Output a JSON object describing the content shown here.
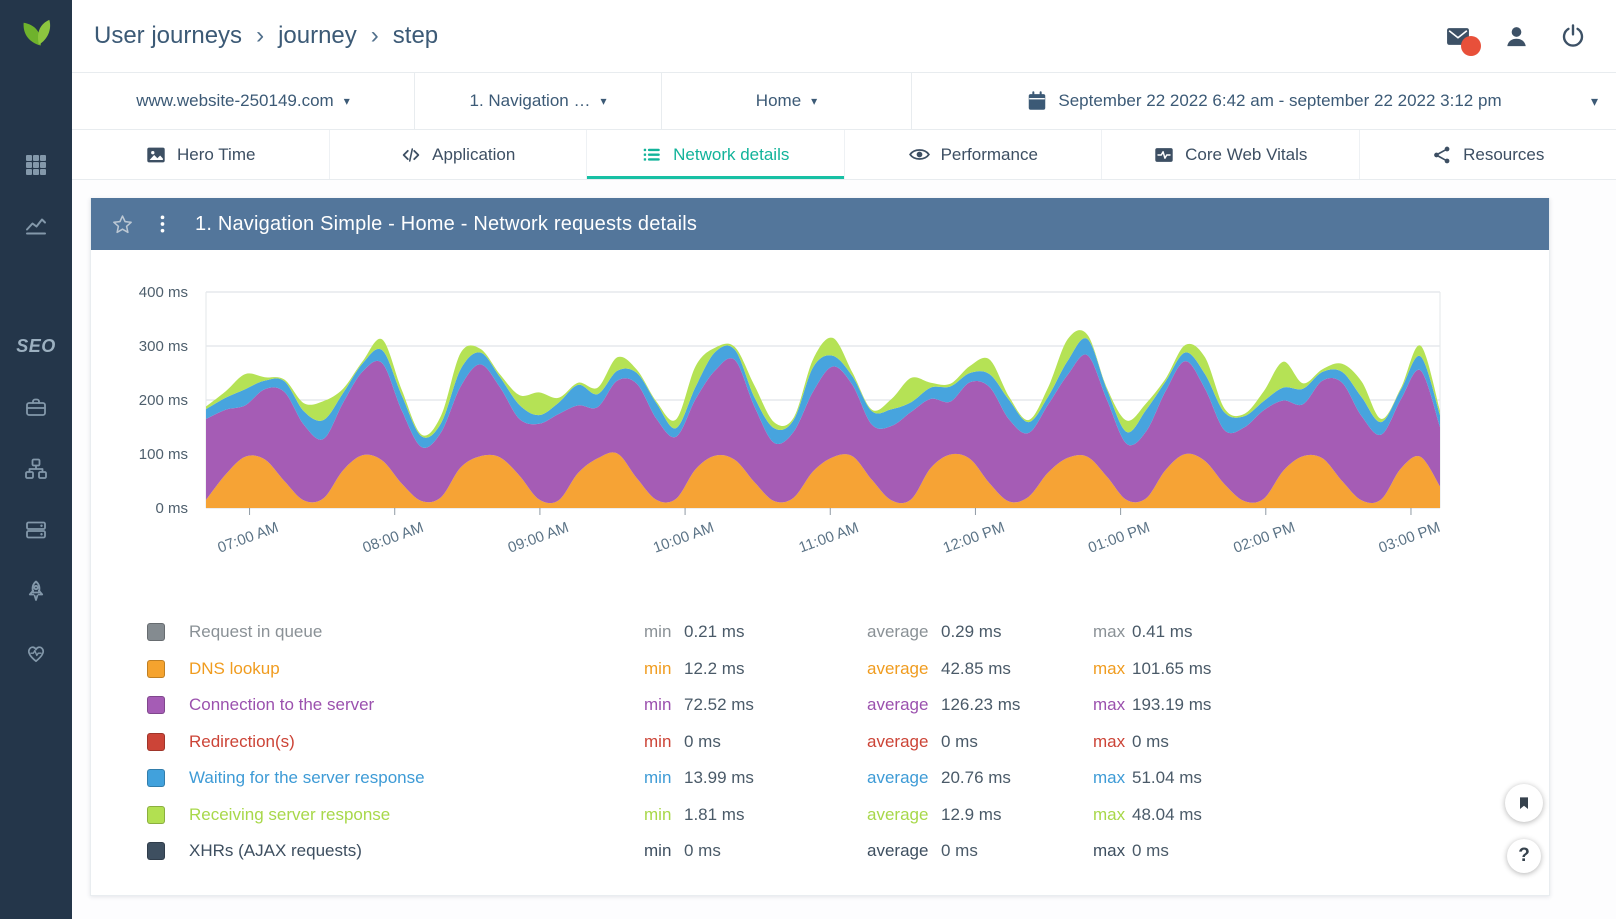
{
  "colors": {
    "sidebar_bg": "#24364a",
    "accent_teal": "#12b39a",
    "panel_header_bg": "#53769b",
    "notification_badge": "#e8503a"
  },
  "sidebar": {
    "seo_label": "SEO",
    "icons": [
      "logo-leaf-icon",
      "apps-grid-icon",
      "analytics-chart-icon",
      "seo-label",
      "briefcase-icon",
      "sitemap-icon",
      "server-icon",
      "rocket-icon",
      "health-heart-icon"
    ]
  },
  "header": {
    "breadcrumb": [
      "User journeys",
      "journey",
      "step"
    ],
    "separator": "›",
    "icons": [
      "messages-envelope-icon",
      "user-profile-icon",
      "power-logout-icon"
    ]
  },
  "filters": {
    "website": "www.website-250149.com",
    "journey": "1. Navigation …",
    "step": "Home",
    "date_range": "September 22 2022 6:42 am - september 22 2022 3:12 pm"
  },
  "tabs": [
    {
      "label": "Hero Time",
      "icon": "hero-image-icon",
      "active": false
    },
    {
      "label": "Application",
      "icon": "code-icon",
      "active": false
    },
    {
      "label": "Network details",
      "icon": "network-list-icon",
      "active": true
    },
    {
      "label": "Performance",
      "icon": "eye-icon",
      "active": false
    },
    {
      "label": "Core Web Vitals",
      "icon": "vitals-chart-icon",
      "active": false
    },
    {
      "label": "Resources",
      "icon": "resources-icon",
      "active": false
    }
  ],
  "panel": {
    "title": "1. Navigation Simple - Home - Network requests details"
  },
  "chart_data": {
    "type": "area",
    "stacked": true,
    "title": "1. Navigation Simple - Home - Network requests details",
    "unit": "ms",
    "y_ticks": [
      0,
      100,
      200,
      300,
      400
    ],
    "ylim": [
      0,
      400
    ],
    "x_range": [
      "6:42 am",
      "3:12 pm"
    ],
    "x_labels": [
      "07:00 AM",
      "08:00 AM",
      "09:00 AM",
      "10:00 AM",
      "11:00 AM",
      "12:00 PM",
      "01:00 PM",
      "02:00 PM",
      "03:00 PM"
    ],
    "x_first_label_offset_min": 18,
    "x_label_interval_min": 60,
    "x_total_min": 510,
    "series": [
      {
        "name": "Request in queue",
        "color": "#8a9196",
        "flat_approx_ms": 0.29
      },
      {
        "name": "DNS lookup",
        "color": "#f6a335",
        "values": [
          15,
          62,
          95,
          90,
          50,
          14,
          18,
          70,
          98,
          88,
          45,
          13,
          20,
          75,
          96,
          94,
          60,
          16,
          14,
          65,
          92,
          101,
          55,
          15,
          17,
          72,
          97,
          89,
          48,
          13,
          19,
          68,
          94,
          96,
          52,
          14,
          16,
          74,
          99,
          91,
          46,
          12,
          21,
          66,
          93,
          95,
          58,
          15,
          18,
          71,
          100,
          87,
          44,
          13,
          17,
          69,
          96,
          92,
          50,
          14,
          16,
          73,
          95,
          40
        ]
      },
      {
        "name": "Connection to the server",
        "color": "#a55cb5",
        "values": [
          150,
          120,
          95,
          130,
          165,
          140,
          110,
          125,
          155,
          180,
          135,
          100,
          120,
          150,
          170,
          130,
          105,
          140,
          160,
          125,
          95,
          135,
          175,
          150,
          115,
          130,
          158,
          185,
          140,
          108,
          122,
          148,
          168,
          132,
          102,
          138,
          162,
          128,
          98,
          142,
          178,
          152,
          118,
          126,
          154,
          188,
          142,
          104,
          124,
          146,
          172,
          134,
          100,
          136,
          164,
          130,
          96,
          144,
          182,
          156,
          120,
          128,
          160,
          110
        ]
      },
      {
        "name": "Redirection(s)",
        "color": "#cc4437",
        "flat_approx_ms": 0
      },
      {
        "name": "Waiting for the server response",
        "color": "#47a4de",
        "values": [
          18,
          22,
          30,
          16,
          20,
          25,
          35,
          18,
          15,
          24,
          28,
          20,
          17,
          32,
          22,
          19,
          26,
          16,
          21,
          38,
          24,
          18,
          20,
          29,
          16,
          23,
          34,
          19,
          17,
          27,
          22,
          45,
          20,
          16,
          25,
          31,
          18,
          21,
          28,
          17,
          24,
          36,
          20,
          15,
          26,
          30,
          19,
          22,
          40,
          18,
          16,
          27,
          33,
          21,
          17,
          24,
          29,
          16,
          20,
          35,
          23,
          18,
          26,
          22
        ]
      },
      {
        "name": "Receiving server response",
        "color": "#b5e255",
        "values": [
          5,
          12,
          28,
          6,
          3,
          15,
          35,
          8,
          4,
          20,
          10,
          3,
          14,
          30,
          7,
          5,
          18,
          42,
          9,
          4,
          12,
          25,
          6,
          3,
          16,
          38,
          8,
          5,
          22,
          11,
          4,
          15,
          33,
          7,
          3,
          19,
          45,
          9,
          5,
          13,
          27,
          6,
          4,
          17,
          40,
          8,
          3,
          21,
          12,
          5,
          14,
          31,
          7,
          4,
          18,
          48,
          10,
          5,
          15,
          29,
          6,
          3,
          20,
          8
        ]
      },
      {
        "name": "XHRs (AJAX requests)",
        "color": "#3e4f60",
        "flat_approx_ms": 0
      }
    ]
  },
  "legend_columns": {
    "min": "min",
    "average": "average",
    "max": "max"
  },
  "legend": [
    {
      "name": "Request in queue",
      "color": "#848b90",
      "text_color": "#8a9196",
      "min": "0.21 ms",
      "average": "0.29 ms",
      "max": "0.41 ms"
    },
    {
      "name": "DNS lookup",
      "color": "#f5a32e",
      "text_color": "#f09c1f",
      "min": "12.2 ms",
      "average": "42.85 ms",
      "max": "101.65 ms"
    },
    {
      "name": "Connection to the server",
      "color": "#a55cb5",
      "text_color": "#9b51ae",
      "min": "72.52 ms",
      "average": "126.23 ms",
      "max": "193.19 ms"
    },
    {
      "name": "Redirection(s)",
      "color": "#cc4437",
      "text_color": "#cc4437",
      "min": "0 ms",
      "average": "0 ms",
      "max": "0 ms"
    },
    {
      "name": "Waiting for the server response",
      "color": "#41a1dc",
      "text_color": "#3e9bd6",
      "min": "13.99 ms",
      "average": "20.76 ms",
      "max": "51.04 ms"
    },
    {
      "name": "Receiving server response",
      "color": "#b2e051",
      "text_color": "#a8d84a",
      "min": "1.81 ms",
      "average": "12.9 ms",
      "max": "48.04 ms"
    },
    {
      "name": "XHRs (AJAX requests)",
      "color": "#3e4f60",
      "text_color": "#3e4f60",
      "min": "0 ms",
      "average": "0 ms",
      "max": "0 ms"
    }
  ],
  "fab": {
    "help_label": "?"
  }
}
